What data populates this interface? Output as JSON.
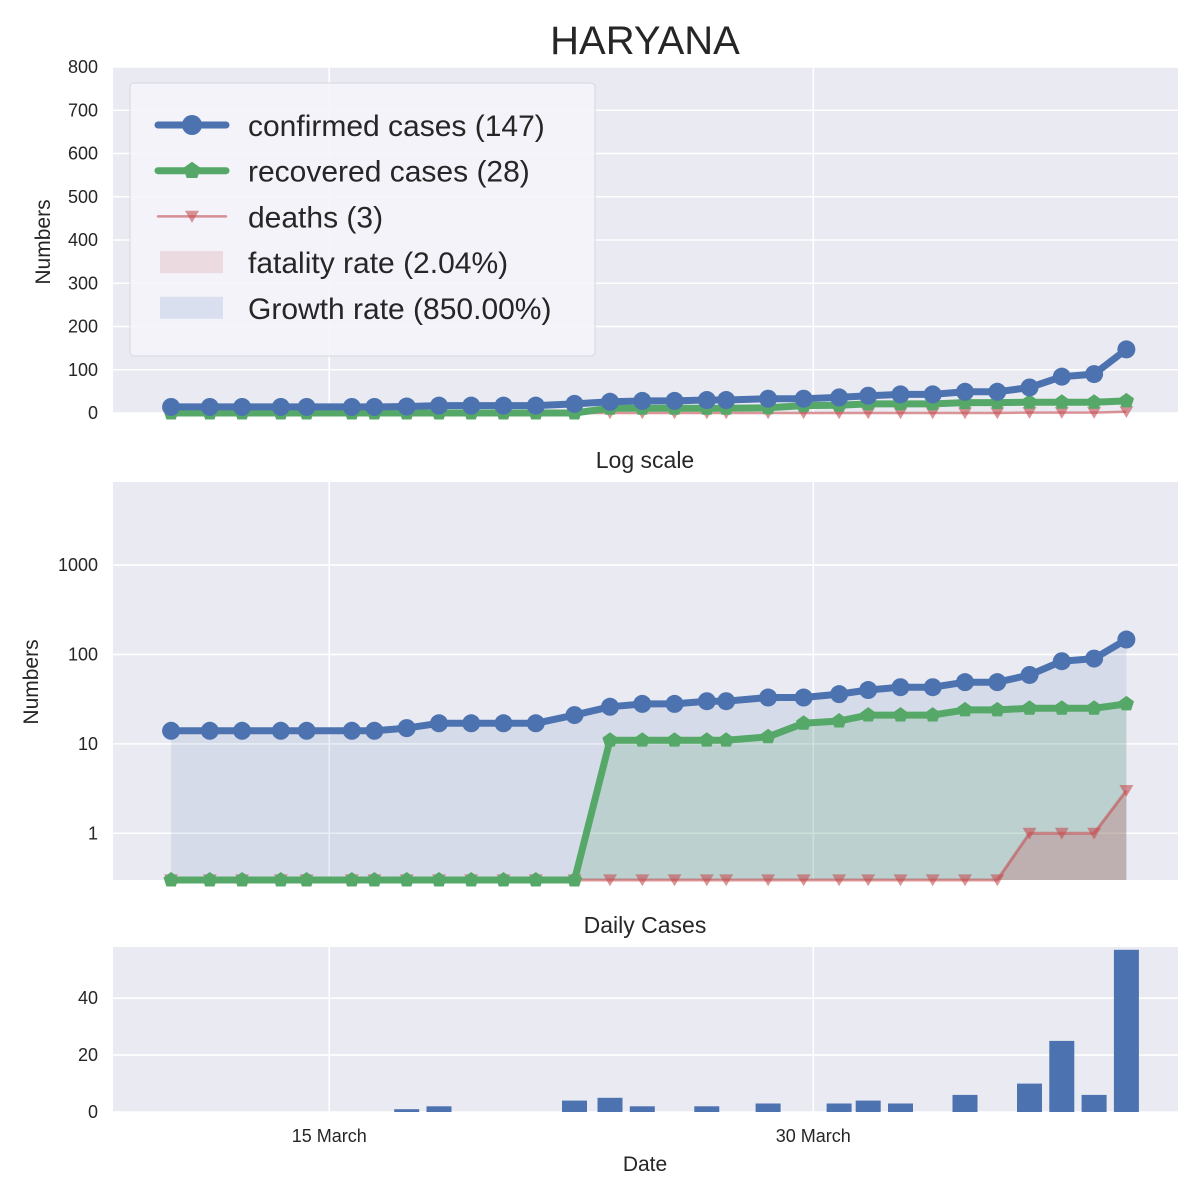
{
  "figure_title": "HARYANA",
  "colors": {
    "confirmed": "#4C72B0",
    "recovered": "#55A868",
    "deaths": "#C44E52",
    "panel_bg": "#EAEAF2",
    "grid": "#FFFFFF"
  },
  "legend": {
    "items": [
      {
        "label": "confirmed cases (147)",
        "kind": "line",
        "color": "#4C72B0",
        "marker": "circle"
      },
      {
        "label": "recovered cases (28)",
        "kind": "line",
        "color": "#55A868",
        "marker": "pentagon"
      },
      {
        "label": "deaths (3)",
        "kind": "line",
        "color": "#C44E52",
        "marker": "triangle-down"
      },
      {
        "label": "fatality rate (2.04%)",
        "kind": "patch",
        "color": "#C44E52"
      },
      {
        "label": "Growth rate (850.00%)",
        "kind": "patch",
        "color": "#4C72B0"
      }
    ]
  },
  "chart_data": [
    {
      "type": "line",
      "title": "HARYANA",
      "ylabel": "Numbers",
      "ylim": [
        0,
        800
      ],
      "yticks": [
        0,
        100,
        200,
        300,
        400,
        500,
        600,
        700,
        800
      ],
      "xticks": [
        {
          "day": 15,
          "label": "15 March"
        },
        {
          "day": 30,
          "label": "30 March"
        }
      ],
      "xlim_days": [
        8.3,
        41.3
      ],
      "x_days": [
        10.1,
        11.3,
        12.3,
        13.5,
        14.3,
        15.7,
        16.4,
        17.4,
        18.4,
        19.4,
        20.4,
        21.4,
        22.6,
        23.7,
        24.7,
        25.7,
        26.7,
        27.3,
        28.6,
        29.7,
        30.8,
        31.7,
        32.7,
        33.7,
        34.7,
        35.7,
        36.7,
        37.7,
        38.7,
        39.7
      ],
      "series": [
        {
          "name": "confirmed cases (147)",
          "values": [
            14,
            14,
            14,
            14,
            14,
            14,
            14,
            15,
            17,
            17,
            17,
            17,
            21,
            26,
            28,
            28,
            30,
            30,
            33,
            33,
            36,
            40,
            43,
            43,
            49,
            49,
            59,
            84,
            90,
            147
          ]
        },
        {
          "name": "recovered cases (28)",
          "values": [
            0,
            0,
            0,
            0,
            0,
            0,
            0,
            0,
            0,
            0,
            0,
            0,
            0,
            11,
            11,
            11,
            11,
            11,
            12,
            17,
            18,
            21,
            21,
            21,
            24,
            24,
            25,
            25,
            25,
            28
          ]
        },
        {
          "name": "deaths (3)",
          "values": [
            0,
            0,
            0,
            0,
            0,
            0,
            0,
            0,
            0,
            0,
            0,
            0,
            0,
            0,
            0,
            0,
            0,
            0,
            0,
            0,
            0,
            0,
            0,
            0,
            0,
            0,
            1,
            1,
            1,
            3
          ]
        }
      ],
      "grid": true,
      "legend_position": "upper-left"
    },
    {
      "type": "area",
      "title": "Log scale",
      "ylabel": "Numbers",
      "yscale": "log",
      "yticks": [
        1,
        10,
        100,
        1000
      ],
      "ytick_labels": [
        "1",
        "10",
        "100",
        "1000"
      ],
      "grid": true
    },
    {
      "type": "bar",
      "title": "Daily Cases",
      "xlabel": "Date",
      "ylim": [
        0,
        58
      ],
      "yticks": [
        0,
        20,
        40
      ],
      "bars": [
        {
          "day": 17.4,
          "value": 1
        },
        {
          "day": 18.4,
          "value": 2
        },
        {
          "day": 22.6,
          "value": 4
        },
        {
          "day": 23.7,
          "value": 5
        },
        {
          "day": 24.7,
          "value": 2
        },
        {
          "day": 26.7,
          "value": 2
        },
        {
          "day": 28.6,
          "value": 3
        },
        {
          "day": 30.8,
          "value": 3
        },
        {
          "day": 31.7,
          "value": 4
        },
        {
          "day": 32.7,
          "value": 3
        },
        {
          "day": 34.7,
          "value": 6
        },
        {
          "day": 36.7,
          "value": 10
        },
        {
          "day": 37.7,
          "value": 25
        },
        {
          "day": 38.7,
          "value": 6
        },
        {
          "day": 39.7,
          "value": 57
        }
      ],
      "grid": true
    }
  ]
}
